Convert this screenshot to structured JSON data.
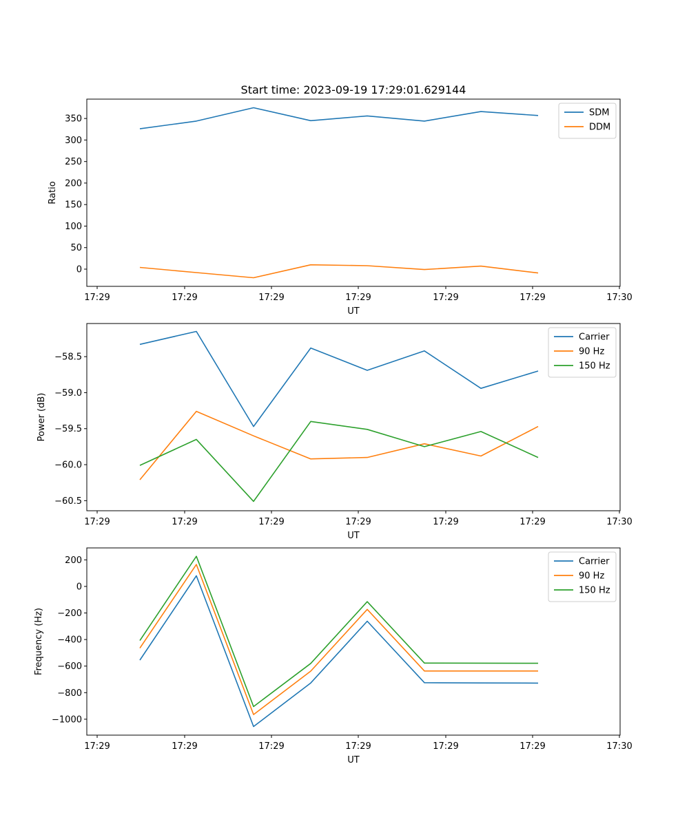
{
  "chart_data": [
    {
      "type": "line",
      "title": "Start time: 2023-09-19 17:29:01.629144",
      "xlabel": "UT",
      "ylabel": "Ratio",
      "x_tick_labels": [
        "17:29",
        "17:29",
        "17:29",
        "17:29",
        "17:29",
        "17:29",
        "17:30"
      ],
      "x": [
        1,
        2,
        3,
        4,
        5,
        6,
        7,
        8
      ],
      "ylim": [
        -40,
        395
      ],
      "y_ticks": [
        0,
        50,
        100,
        150,
        200,
        250,
        300,
        350
      ],
      "legend_position": "top-right",
      "series": [
        {
          "name": "SDM",
          "color": "#1f77b4",
          "values": [
            326,
            344,
            375,
            345,
            356,
            344,
            366,
            357
          ]
        },
        {
          "name": "DDM",
          "color": "#ff7f0e",
          "values": [
            4,
            -8,
            -20,
            10,
            8,
            -1,
            7,
            -9
          ]
        }
      ]
    },
    {
      "type": "line",
      "title": "",
      "xlabel": "UT",
      "ylabel": "Power (dB)",
      "x_tick_labels": [
        "17:29",
        "17:29",
        "17:29",
        "17:29",
        "17:29",
        "17:29",
        "17:30"
      ],
      "x": [
        1,
        2,
        3,
        4,
        5,
        6,
        7,
        8
      ],
      "ylim": [
        -60.64,
        -58.04
      ],
      "y_ticks": [
        -60.5,
        -60.0,
        -59.5,
        -59.0,
        -58.5
      ],
      "legend_position": "top-right",
      "series": [
        {
          "name": "Carrier",
          "color": "#1f77b4",
          "values": [
            -58.33,
            -58.15,
            -59.47,
            -58.38,
            -58.69,
            -58.42,
            -58.94,
            -58.7
          ]
        },
        {
          "name": "90 Hz",
          "color": "#ff7f0e",
          "values": [
            -60.21,
            -59.26,
            -59.6,
            -59.92,
            -59.9,
            -59.71,
            -59.88,
            -59.47
          ]
        },
        {
          "name": "150 Hz",
          "color": "#2ca02c",
          "values": [
            -60.01,
            -59.65,
            -60.51,
            -59.4,
            -59.51,
            -59.75,
            -59.54,
            -59.9
          ]
        }
      ]
    },
    {
      "type": "line",
      "title": "",
      "xlabel": "UT",
      "ylabel": "Frequency (Hz)",
      "x_tick_labels": [
        "17:29",
        "17:29",
        "17:29",
        "17:29",
        "17:29",
        "17:29",
        "17:30"
      ],
      "x": [
        1,
        2,
        3,
        4,
        5,
        6,
        7,
        8
      ],
      "ylim": [
        -1120,
        290
      ],
      "y_ticks": [
        -1000,
        -800,
        -600,
        -400,
        -200,
        0,
        200
      ],
      "legend_position": "top-right",
      "series": [
        {
          "name": "Carrier",
          "color": "#1f77b4",
          "values": [
            -555,
            80,
            -1055,
            -727,
            -262,
            -725,
            -727,
            -728
          ]
        },
        {
          "name": "90 Hz",
          "color": "#ff7f0e",
          "values": [
            -465,
            165,
            -965,
            -638,
            -173,
            -637,
            -637,
            -637
          ]
        },
        {
          "name": "150 Hz",
          "color": "#2ca02c",
          "values": [
            -408,
            227,
            -905,
            -580,
            -115,
            -577,
            -578,
            -579
          ]
        }
      ]
    }
  ]
}
